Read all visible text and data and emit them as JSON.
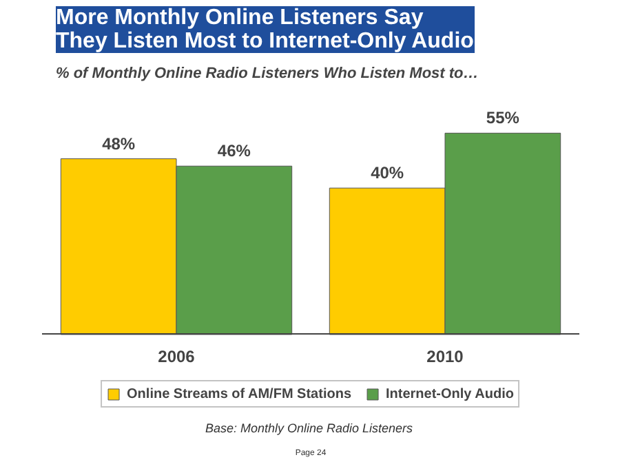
{
  "chart_data": {
    "type": "bar",
    "title": "More Monthly Online Listeners Say\nThey Listen Most to Internet-Only Audio",
    "subtitle": "% of Monthly Online Radio Listeners Who Listen Most to…",
    "categories": [
      "2006",
      "2010"
    ],
    "series": [
      {
        "name": "Online Streams of AM/FM Stations",
        "color": "#ffcc00",
        "values": [
          48,
          40
        ],
        "value_labels": [
          "48%",
          "40%"
        ]
      },
      {
        "name": "Internet-Only Audio",
        "color": "#5a9e4a",
        "values": [
          46,
          55
        ],
        "value_labels": [
          "46%",
          "55%"
        ]
      }
    ],
    "legend": "bottom",
    "annotations": [
      "Base:  Monthly Online Radio Listeners",
      "Page 24"
    ]
  }
}
